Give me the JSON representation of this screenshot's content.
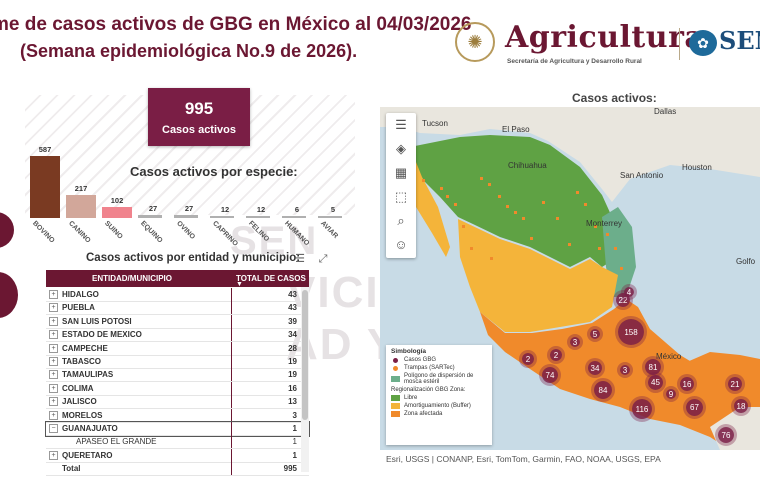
{
  "header": {
    "title_line1": "me de casos activos de GBG en México al 04/03/2026",
    "title_line2": "(Semana epidemiológica No.9 de 2026)."
  },
  "logo": {
    "brand": "Agricultura",
    "subtitle": "Secretaría de Agricultura y Desarrollo Rural",
    "second_brand": "SEN"
  },
  "watermark": {
    "line1": "SEN",
    "line2": "VICIO",
    "line3": "AD Y C"
  },
  "kpi": {
    "value": "995",
    "label": "Casos activos"
  },
  "species_section": {
    "title": "Casos activos por especie:"
  },
  "chart_data": {
    "type": "bar",
    "title": "Casos activos por especie:",
    "categories": [
      "BOVINO",
      "CANINO",
      "SUINO",
      "EQUINO",
      "OVINO",
      "CAPRINO",
      "FELINO",
      "HUMANO",
      "AVIAR"
    ],
    "values": [
      587,
      217,
      102,
      27,
      27,
      12,
      12,
      6,
      5
    ],
    "colors": [
      "#7a3a22",
      "#d2a79a",
      "#f0838d",
      "#b0b0b0",
      "#b0b0b0",
      "#b0b0b0",
      "#b0b0b0",
      "#b0b0b0",
      "#b0b0b0"
    ],
    "ylim": [
      0,
      600
    ]
  },
  "table_section": {
    "title": "Casos activos por entidad y municipio:",
    "col1": "ENTIDAD/MUNICIPIO",
    "col2": "TOTAL DE CASOS",
    "rows": [
      {
        "name": "HIDALGO",
        "value": "43",
        "exp": "+"
      },
      {
        "name": "PUEBLA",
        "value": "43",
        "exp": "+"
      },
      {
        "name": "SAN LUIS POTOSI",
        "value": "39",
        "exp": "+"
      },
      {
        "name": "ESTADO DE MEXICO",
        "value": "34",
        "exp": "+"
      },
      {
        "name": "CAMPECHE",
        "value": "28",
        "exp": "+"
      },
      {
        "name": "TABASCO",
        "value": "19",
        "exp": "+"
      },
      {
        "name": "TAMAULIPAS",
        "value": "19",
        "exp": "+"
      },
      {
        "name": "COLIMA",
        "value": "16",
        "exp": "+"
      },
      {
        "name": "JALISCO",
        "value": "13",
        "exp": "+"
      },
      {
        "name": "MORELOS",
        "value": "3",
        "exp": "+"
      },
      {
        "name": "GUANAJUATO",
        "value": "1",
        "exp": "−"
      },
      {
        "name": "APASEO EL GRANDE",
        "value": "1",
        "exp": ""
      },
      {
        "name": "QUERETARO",
        "value": "1",
        "exp": "+"
      },
      {
        "name": "Total",
        "value": "995",
        "exp": ""
      }
    ]
  },
  "map": {
    "title": "Casos activos:",
    "attribution": "Esri, USGS | CONANP, Esri, TomTom, Garmin, FAO, NOAA, USGS, EPA",
    "cities": [
      "Tucson",
      "El Paso",
      "Dallas",
      "Houston",
      "San Antonio",
      "Chihuahua",
      "Monterrey",
      "México",
      "Golfo"
    ],
    "clusters": [
      "158",
      "22",
      "4",
      "81",
      "45",
      "16",
      "21",
      "18",
      "67",
      "116",
      "84",
      "74",
      "34",
      "3",
      "2",
      "2",
      "76",
      "9",
      "3",
      "5"
    ],
    "legend": {
      "title": "Simbología",
      "items": [
        "Casos GBG",
        "Trampas (SARTec)",
        "Polígono de dispersión de mosca estéril",
        "Regionalización GBG Zona:",
        "Libre",
        "Amortiguamiento (Buffer)",
        "Zona afectada"
      ]
    },
    "colors": {
      "libre": "#5fa244",
      "buffer": "#f4b43a",
      "afectada": "#f08a2b",
      "dispersion": "#6cae8b",
      "case": "#7a1e45"
    }
  }
}
